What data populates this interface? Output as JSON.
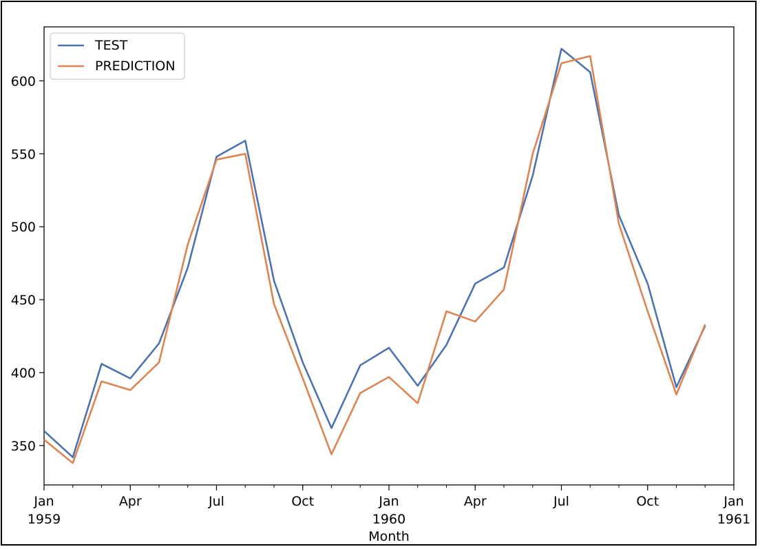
{
  "chart_data": {
    "type": "line",
    "title": "",
    "xlabel": "Month",
    "ylabel": "",
    "x": [
      "1959-01",
      "1959-02",
      "1959-03",
      "1959-04",
      "1959-05",
      "1959-06",
      "1959-07",
      "1959-08",
      "1959-09",
      "1959-10",
      "1959-11",
      "1959-12",
      "1960-01",
      "1960-02",
      "1960-03",
      "1960-04",
      "1960-05",
      "1960-06",
      "1960-07",
      "1960-08",
      "1960-09",
      "1960-10",
      "1960-11",
      "1960-12"
    ],
    "xlim": [
      "1959-01",
      "1961-01"
    ],
    "ylim": [
      323,
      637
    ],
    "grid": false,
    "legend": "upper-left",
    "series": [
      {
        "name": "TEST",
        "color": "#4c72b0",
        "values": [
          360,
          342,
          406,
          396,
          420,
          472,
          548,
          559,
          463,
          407,
          362,
          405,
          417,
          391,
          419,
          461,
          472,
          535,
          622,
          606,
          508,
          461,
          390,
          432
        ]
      },
      {
        "name": "PREDICTION",
        "color": "#dd8452",
        "values": [
          354,
          338,
          394,
          388,
          407,
          488,
          546,
          550,
          447,
          396,
          344,
          386,
          397,
          379,
          442,
          435,
          457,
          550,
          612,
          617,
          502,
          442,
          385,
          433
        ]
      }
    ],
    "yticks": [
      {
        "value": 350,
        "label": "350"
      },
      {
        "value": 400,
        "label": "400"
      },
      {
        "value": 450,
        "label": "450"
      },
      {
        "value": 500,
        "label": "500"
      },
      {
        "value": 550,
        "label": "550"
      },
      {
        "value": 600,
        "label": "600"
      }
    ],
    "xticks_major": [
      {
        "value": "1959-01",
        "line1": "Jan",
        "line2": "1959"
      },
      {
        "value": "1959-04",
        "line1": "Apr",
        "line2": ""
      },
      {
        "value": "1959-07",
        "line1": "Jul",
        "line2": ""
      },
      {
        "value": "1959-10",
        "line1": "Oct",
        "line2": ""
      },
      {
        "value": "1960-01",
        "line1": "Jan",
        "line2": "1960"
      },
      {
        "value": "1960-04",
        "line1": "Apr",
        "line2": ""
      },
      {
        "value": "1960-07",
        "line1": "Jul",
        "line2": ""
      },
      {
        "value": "1960-10",
        "line1": "Oct",
        "line2": ""
      },
      {
        "value": "1961-01",
        "line1": "Jan",
        "line2": "1961"
      }
    ]
  }
}
